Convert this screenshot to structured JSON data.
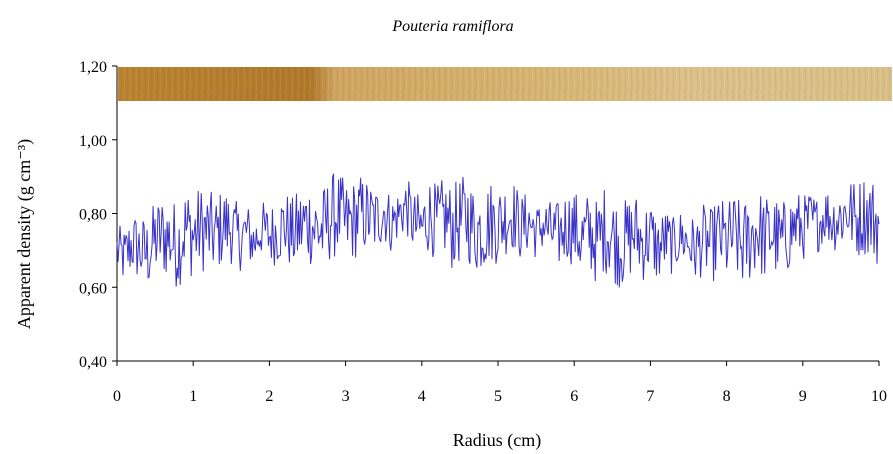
{
  "chart_data": {
    "type": "line",
    "title": "Pouteria ramiflora",
    "xlabel": "Radius (cm)",
    "ylabel": "Apparent density (g cm⁻³)",
    "xlim": [
      0,
      10
    ],
    "ylim": [
      0.4,
      1.2
    ],
    "x_ticks": [
      "0",
      "1",
      "2",
      "3",
      "4",
      "5",
      "6",
      "7",
      "8",
      "9",
      "10"
    ],
    "y_ticks": [
      "0,40",
      "0,60",
      "0,80",
      "1,00",
      "1,20"
    ],
    "grid": false,
    "legend": "none",
    "colors": {
      "line": "#3a32c8",
      "wood_dark": "#b27a2e",
      "wood_light": "#d8b978"
    },
    "series": [
      {
        "values_step_cm": 0.1,
        "x_start": 0,
        "y": [
          0.7,
          0.68,
          0.72,
          0.7,
          0.69,
          0.73,
          0.74,
          0.73,
          0.71,
          0.76,
          0.74,
          0.76,
          0.75,
          0.74,
          0.77,
          0.76,
          0.73,
          0.75,
          0.72,
          0.76,
          0.74,
          0.75,
          0.77,
          0.74,
          0.76,
          0.78,
          0.76,
          0.75,
          0.79,
          0.8,
          0.77,
          0.78,
          0.8,
          0.79,
          0.78,
          0.81,
          0.77,
          0.8,
          0.82,
          0.77,
          0.76,
          0.8,
          0.77,
          0.79,
          0.76,
          0.78,
          0.79,
          0.75,
          0.76,
          0.78,
          0.77,
          0.79,
          0.8,
          0.76,
          0.78,
          0.75,
          0.77,
          0.75,
          0.74,
          0.77,
          0.76,
          0.73,
          0.75,
          0.72,
          0.76,
          0.74,
          0.71,
          0.73,
          0.75,
          0.72,
          0.74,
          0.7,
          0.73,
          0.71,
          0.74,
          0.72,
          0.7,
          0.73,
          0.71,
          0.74,
          0.72,
          0.74,
          0.71,
          0.73,
          0.76,
          0.73,
          0.75,
          0.72,
          0.74,
          0.77,
          0.76,
          0.78,
          0.77,
          0.8,
          0.78,
          0.79,
          0.81,
          0.78,
          0.8,
          0.79,
          0.77
        ]
      }
    ]
  }
}
